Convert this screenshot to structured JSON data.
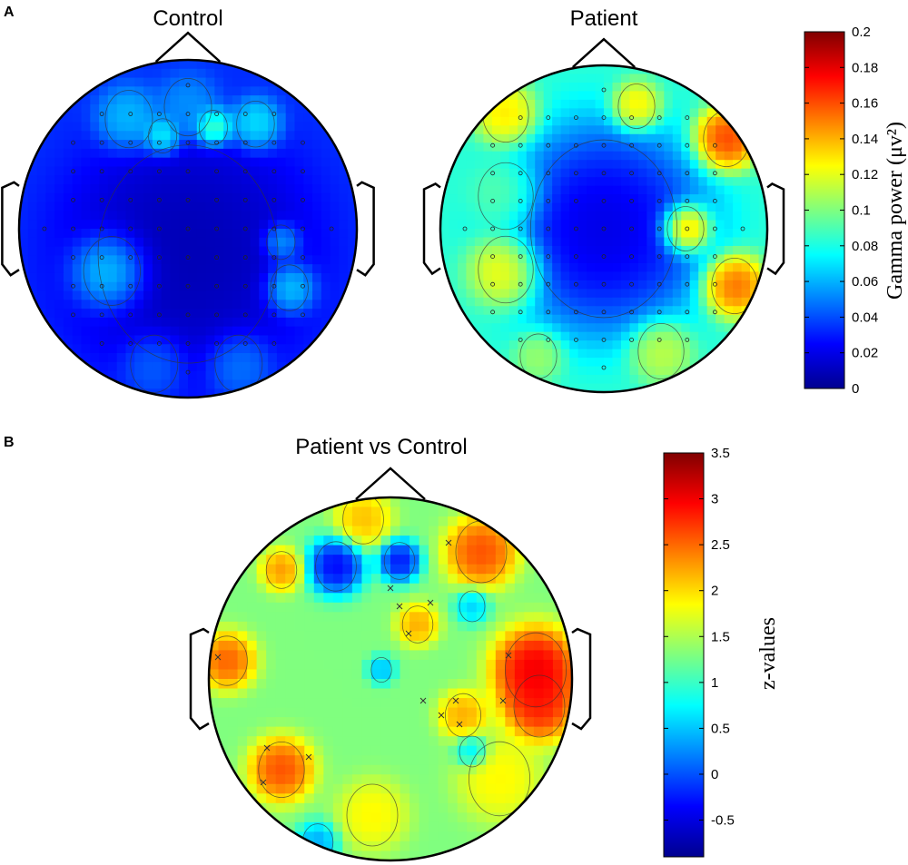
{
  "panels": {
    "a": {
      "letter": "A"
    },
    "b": {
      "letter": "B"
    }
  },
  "chart_data": [
    {
      "type": "heatmap",
      "title": "Control",
      "panel": "A",
      "colormap": "jet",
      "vmin": 0,
      "vmax": 0.2,
      "values_note_from_image": "mostly 0.01-0.06 (dark blue centre), small 0.08-0.1 spots frontal/lateral",
      "blobs": [
        {
          "x": 0.0,
          "y": 0.15,
          "v": 0.005,
          "s": 0.38
        },
        {
          "x": -0.45,
          "y": 0.25,
          "v": 0.09,
          "s": 0.12
        },
        {
          "x": 0.0,
          "y": -0.72,
          "v": 0.06,
          "s": 0.1
        },
        {
          "x": -0.35,
          "y": -0.65,
          "v": 0.07,
          "s": 0.1
        },
        {
          "x": -0.15,
          "y": -0.55,
          "v": 0.09,
          "s": 0.06
        },
        {
          "x": 0.15,
          "y": -0.6,
          "v": 0.11,
          "s": 0.06
        },
        {
          "x": 0.4,
          "y": -0.62,
          "v": 0.08,
          "s": 0.08
        },
        {
          "x": 0.6,
          "y": 0.35,
          "v": 0.08,
          "s": 0.08
        },
        {
          "x": 0.55,
          "y": 0.08,
          "v": 0.07,
          "s": 0.06
        },
        {
          "x": -0.2,
          "y": 0.8,
          "v": 0.05,
          "s": 0.1
        },
        {
          "x": 0.3,
          "y": 0.8,
          "v": 0.055,
          "s": 0.1
        }
      ],
      "base": 0.035
    },
    {
      "type": "heatmap",
      "title": "Patient",
      "panel": "A",
      "colormap": "jet",
      "vmin": 0,
      "vmax": 0.2,
      "blobs": [
        {
          "x": 0.0,
          "y": 0.0,
          "v": 0.005,
          "s": 0.32
        },
        {
          "x": -0.6,
          "y": 0.25,
          "v": 0.14,
          "s": 0.12
        },
        {
          "x": -0.6,
          "y": -0.7,
          "v": 0.14,
          "s": 0.1
        },
        {
          "x": 0.2,
          "y": -0.75,
          "v": 0.14,
          "s": 0.08
        },
        {
          "x": 0.75,
          "y": -0.55,
          "v": 0.18,
          "s": 0.1
        },
        {
          "x": 0.5,
          "y": 0.0,
          "v": 0.17,
          "s": 0.08
        },
        {
          "x": 0.8,
          "y": 0.35,
          "v": 0.17,
          "s": 0.1
        },
        {
          "x": -0.4,
          "y": 0.78,
          "v": 0.11,
          "s": 0.08
        },
        {
          "x": 0.35,
          "y": 0.75,
          "v": 0.12,
          "s": 0.1
        },
        {
          "x": -0.6,
          "y": -0.2,
          "v": 0.1,
          "s": 0.12
        }
      ],
      "base": 0.085
    },
    {
      "type": "heatmap",
      "title": "Patient vs Control",
      "panel": "B",
      "colormap": "jet",
      "vmin": -0.9,
      "vmax": 3.5,
      "blobs": [
        {
          "x": -0.3,
          "y": -0.62,
          "v": -0.7,
          "s": 0.08
        },
        {
          "x": 0.05,
          "y": -0.65,
          "v": -0.6,
          "s": 0.06
        },
        {
          "x": 0.5,
          "y": -0.7,
          "v": 2.9,
          "s": 0.1
        },
        {
          "x": -0.15,
          "y": -0.88,
          "v": 2.3,
          "s": 0.08
        },
        {
          "x": -0.6,
          "y": -0.6,
          "v": 2.5,
          "s": 0.06
        },
        {
          "x": 0.8,
          "y": -0.05,
          "v": 3.4,
          "s": 0.12
        },
        {
          "x": 0.82,
          "y": 0.15,
          "v": 3.1,
          "s": 0.1
        },
        {
          "x": -0.9,
          "y": -0.1,
          "v": 2.8,
          "s": 0.08
        },
        {
          "x": -0.6,
          "y": 0.5,
          "v": 2.9,
          "s": 0.09
        },
        {
          "x": 0.15,
          "y": -0.3,
          "v": 2.4,
          "s": 0.06
        },
        {
          "x": 0.4,
          "y": 0.2,
          "v": 2.4,
          "s": 0.07
        },
        {
          "x": 0.6,
          "y": 0.55,
          "v": 2.0,
          "s": 0.12
        },
        {
          "x": -0.1,
          "y": 0.75,
          "v": 2.0,
          "s": 0.1
        },
        {
          "x": 0.45,
          "y": 0.4,
          "v": 0.4,
          "s": 0.05
        },
        {
          "x": 0.45,
          "y": -0.4,
          "v": 0.4,
          "s": 0.05
        },
        {
          "x": -0.05,
          "y": -0.05,
          "v": 0.3,
          "s": 0.04
        },
        {
          "x": -0.4,
          "y": 0.9,
          "v": 0.2,
          "s": 0.06
        }
      ],
      "base": 1.3
    }
  ],
  "colorbars": {
    "gamma": {
      "label": "Gamma power (μv²)",
      "ticks": [
        "0",
        "0.02",
        "0.04",
        "0.06",
        "0.08",
        "0.1",
        "0.12",
        "0.14",
        "0.16",
        "0.18",
        "0.2"
      ],
      "tick_values": [
        0,
        0.02,
        0.04,
        0.06,
        0.08,
        0.1,
        0.12,
        0.14,
        0.16,
        0.18,
        0.2
      ]
    },
    "z": {
      "label": "z-values",
      "ticks": [
        "-0.5",
        "0",
        "0.5",
        "1",
        "1.5",
        "2",
        "2.5",
        "3",
        "3.5"
      ],
      "tick_values": [
        -0.5,
        0,
        0.5,
        1,
        1.5,
        2,
        2.5,
        3,
        3.5
      ]
    }
  }
}
